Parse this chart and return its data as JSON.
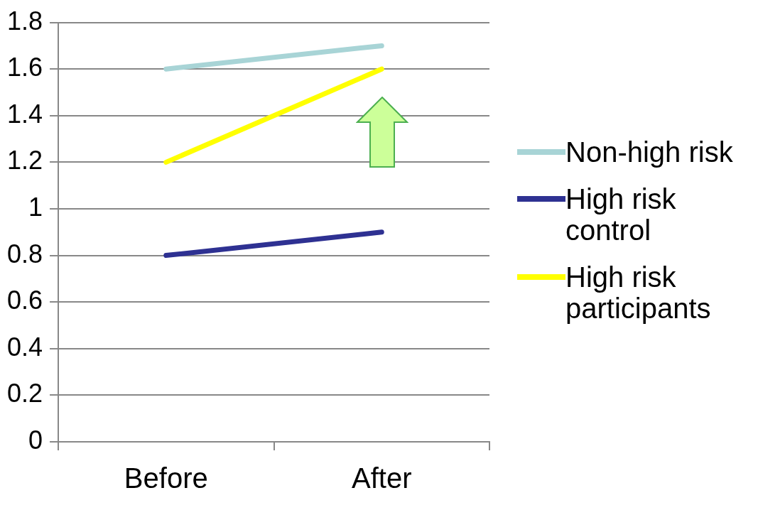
{
  "chart_data": {
    "type": "line",
    "categories": [
      "Before",
      "After"
    ],
    "series": [
      {
        "name": "Non-high risk",
        "color": "#a8d4d6",
        "values": [
          1.6,
          1.7
        ]
      },
      {
        "name": "High risk control",
        "color": "#2e3192",
        "values": [
          0.8,
          0.9
        ]
      },
      {
        "name": "High risk participants",
        "color": "#ffff00",
        "values": [
          1.2,
          1.6
        ]
      }
    ],
    "ylim": [
      0,
      1.8
    ],
    "yticks": [
      0,
      0.2,
      0.4,
      0.6,
      0.8,
      1,
      1.2,
      1.4,
      1.6,
      1.8
    ],
    "grid": "y",
    "legend": "right",
    "marker": "none",
    "line_style": "solid"
  }
}
